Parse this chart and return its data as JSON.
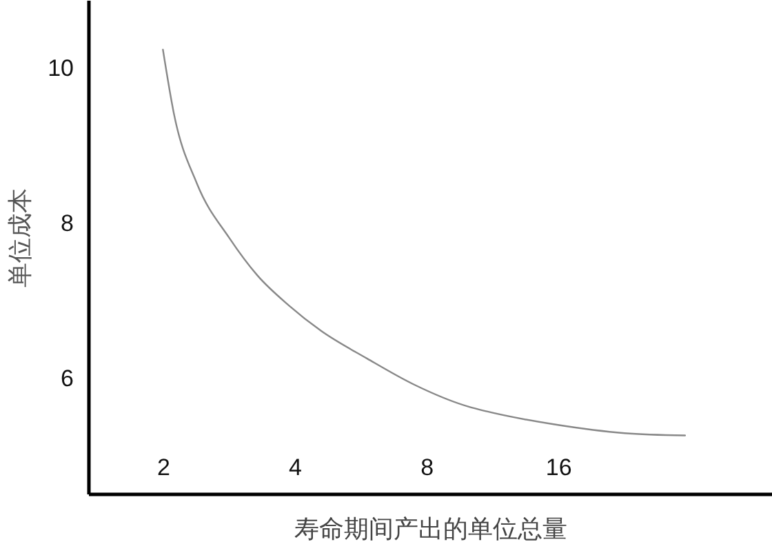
{
  "chart_data": {
    "type": "line",
    "xlabel": "寿命期间产出的单位总量",
    "ylabel": "单位成本",
    "log": "x",
    "x": [
      2,
      2.12,
      2.39,
      2.84,
      3.29,
      3.89,
      4.59,
      5.86,
      7.47,
      10,
      11,
      15.8,
      22.7,
      31.2
    ],
    "series": [
      {
        "color": "#888888",
        "values": [
          10.24,
          9.41,
          8.52,
          7.81,
          7.33,
          6.94,
          6.62,
          6.26,
          5.93,
          5.64,
          5.58,
          5.41,
          5.3,
          5.27
        ]
      }
    ],
    "xlim": [
      1.35,
      49.3
    ],
    "ylim": [
      4.52,
      10.88
    ],
    "xticks": [
      2,
      4,
      8,
      16
    ],
    "yticks": [
      6,
      8,
      10
    ],
    "grid": false,
    "marker": "none",
    "line_style": "solid"
  }
}
